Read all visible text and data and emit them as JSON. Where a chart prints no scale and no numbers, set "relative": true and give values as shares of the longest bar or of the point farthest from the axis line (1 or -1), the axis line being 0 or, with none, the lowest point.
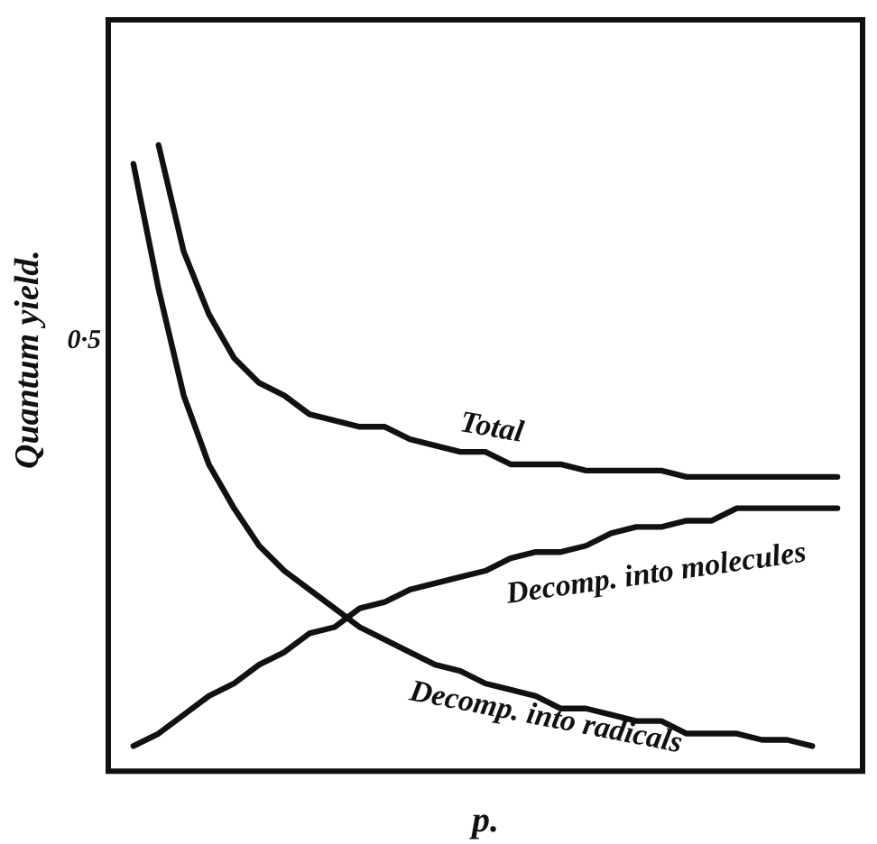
{
  "chart_data": {
    "type": "line",
    "xlabel": "p.",
    "ylabel": "Quantum yield.",
    "relative": true,
    "annotations": [
      "0·5"
    ],
    "categories": [
      null,
      null,
      null,
      null,
      null,
      null,
      null,
      null,
      null,
      null,
      null,
      null,
      null,
      null,
      null,
      null,
      null,
      null,
      null,
      null,
      null,
      null,
      null,
      null,
      null,
      null,
      null,
      null,
      null,
      null,
      null
    ],
    "legend": false,
    "marker": "none",
    "line_style": "solid",
    "series": [
      {
        "name": "Total",
        "color": "#111111",
        "values": [
          null,
          null,
          1,
          0.83,
          0.73,
          0.66,
          0.62,
          0.6,
          0.57,
          0.56,
          0.55,
          0.55,
          0.53,
          0.52,
          0.51,
          0.51,
          0.49,
          0.49,
          0.49,
          0.48,
          0.48,
          0.48,
          0.48,
          0.47,
          0.47,
          0.47,
          0.47,
          0.47,
          0.47,
          0.47,
          null
        ]
      },
      {
        "name": "Decomp. into molecules",
        "color": "#111111",
        "values": [
          null,
          0.04,
          0.06,
          0.09,
          0.12,
          0.14,
          0.17,
          0.19,
          0.22,
          0.23,
          0.26,
          0.27,
          0.29,
          0.3,
          0.31,
          0.32,
          0.34,
          0.35,
          0.35,
          0.36,
          0.38,
          0.39,
          0.39,
          0.4,
          0.4,
          0.42,
          0.42,
          0.42,
          0.42,
          0.42,
          null
        ]
      },
      {
        "name": "Decomp. into radicals",
        "color": "#111111",
        "values": [
          null,
          0.97,
          0.77,
          0.6,
          0.49,
          0.42,
          0.36,
          0.32,
          0.29,
          0.26,
          0.23,
          0.21,
          0.19,
          0.17,
          0.16,
          0.14,
          0.13,
          0.12,
          0.1,
          0.1,
          0.09,
          0.08,
          0.08,
          0.06,
          0.06,
          0.06,
          0.05,
          0.05,
          0.04,
          null,
          null
        ]
      }
    ]
  }
}
